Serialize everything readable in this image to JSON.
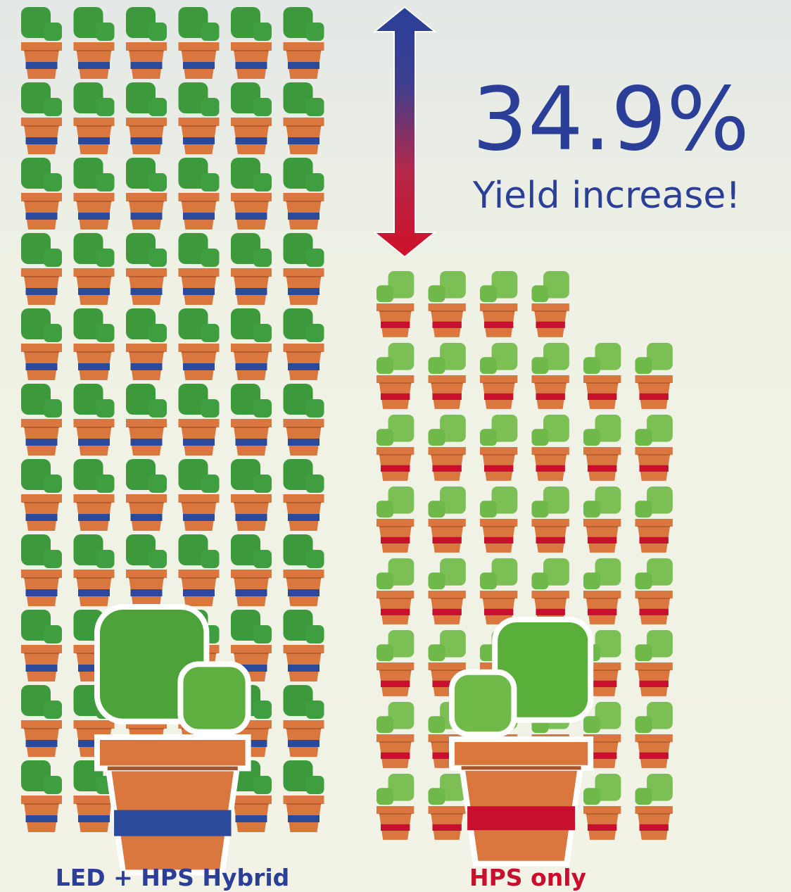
{
  "headline": {
    "value_text": "34.9%",
    "caption": "Yield increase!"
  },
  "groups": [
    {
      "label": "LED + HPS Hybrid"
    },
    {
      "label": "HPS only"
    }
  ]
}
